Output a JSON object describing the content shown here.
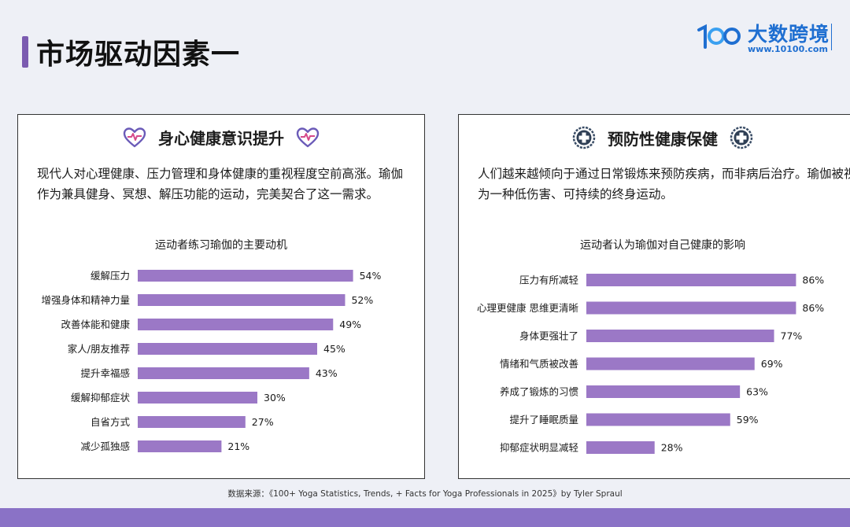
{
  "page": {
    "title": "市场驱动因素一"
  },
  "logo": {
    "name": "大数跨境",
    "url": "www.10100.com"
  },
  "bar_color": "#9b78c6",
  "accent_color": "#7b5bb0",
  "left_panel": {
    "heading": "身心健康意识提升",
    "text": "现代人对心理健康、压力管理和身体健康的重视程度空前高涨。瑜伽作为兼具健身、冥想、解压功能的运动，完美契合了这一需求。"
  },
  "right_panel": {
    "heading": "预防性健康保健",
    "text": "人们越来越倾向于通过日常锻炼来预防疾病，而非病后治疗。瑜伽被视为一种低伤害、可持续的终身运动。"
  },
  "chart_data": [
    {
      "type": "bar",
      "orientation": "horizontal",
      "title": "运动者练习瑜伽的主要动机",
      "categories": [
        "缓解压力",
        "增强身体和精神力量",
        "改善体能和健康",
        "家人/朋友推荐",
        "提升幸福感",
        "缓解抑郁症状",
        "自省方式",
        "减少孤独感"
      ],
      "values": [
        54,
        52,
        49,
        45,
        43,
        30,
        27,
        21
      ],
      "labels": [
        "54%",
        "52%",
        "49%",
        "45%",
        "43%",
        "30%",
        "27%",
        "21%"
      ],
      "unit": "%",
      "xlim": [
        0,
        60
      ],
      "grid": false
    },
    {
      "type": "bar",
      "orientation": "horizontal",
      "title": "运动者认为瑜伽对自己健康的影响",
      "categories": [
        "压力有所减轻",
        "心理更健康 思维更清晰",
        "身体更强壮了",
        "情绪和气质被改善",
        "养成了锻炼的习惯",
        "提升了睡眠质量",
        "抑郁症状明显减轻"
      ],
      "values": [
        86,
        86,
        77,
        69,
        63,
        59,
        28
      ],
      "labels": [
        "86%",
        "86%",
        "77%",
        "69%",
        "63%",
        "59%",
        "28%"
      ],
      "unit": "%",
      "xlim": [
        0,
        92
      ],
      "grid": false
    }
  ],
  "source": {
    "label": "数据来源：",
    "text": "《100+ Yoga Statistics, Trends, + Facts for Yoga Professionals in 2025》by Tyler Spraul"
  }
}
